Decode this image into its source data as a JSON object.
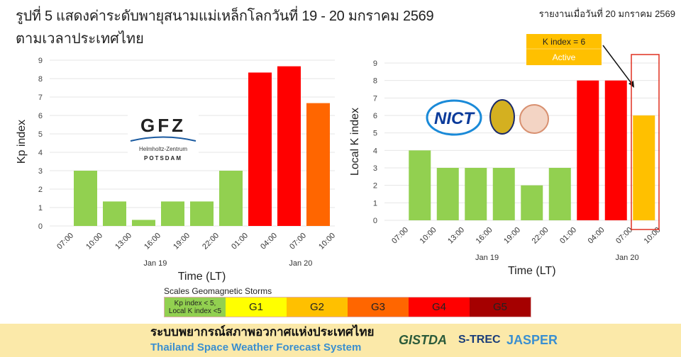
{
  "header": {
    "title_line1": "รูปที่ 5 แสดงค่าระดับพายุสนามแม่เหล็กโลกวันที่ 19 - 20 มกราคม 2569",
    "title_line2": "ตามเวลาประเทศไทย",
    "report_date": "รายงานเมื่อวันที่ 20 มกราคม 2569"
  },
  "chart_data": [
    {
      "type": "bar",
      "ylabel": "Kp index",
      "xlabel": "Time (LT)",
      "ylim": [
        0,
        9
      ],
      "yticks": [
        "0",
        "1",
        "2",
        "3",
        "4",
        "5",
        "6",
        "7",
        "8",
        "9"
      ],
      "xtick_labels": [
        "07:00",
        "10:00",
        "13:00",
        "16:00",
        "19:00",
        "22:00",
        "01:00",
        "04:00",
        "07:00",
        "10:00"
      ],
      "date_labels": [
        "Jan 19",
        "Jan 20"
      ],
      "values": [
        3,
        1.33,
        0.33,
        1.33,
        1.33,
        3,
        8.33,
        8.67,
        6.67
      ],
      "colors": [
        "#92d050",
        "#92d050",
        "#92d050",
        "#92d050",
        "#92d050",
        "#92d050",
        "#ff0000",
        "#ff0000",
        "#ff6600"
      ],
      "logo": {
        "name": "GFZ",
        "line1": "Helmholtz-Zentrum",
        "line2": "POTSDAM"
      }
    },
    {
      "type": "bar",
      "ylabel": "Local K index",
      "xlabel": "Time (LT)",
      "ylim": [
        0,
        9
      ],
      "yticks": [
        "0",
        "1",
        "2",
        "3",
        "4",
        "5",
        "6",
        "7",
        "8",
        "9"
      ],
      "xtick_labels": [
        "07:00",
        "10:00",
        "13:00",
        "16:00",
        "19:00",
        "22:00",
        "01:00",
        "04:00",
        "07:00",
        "10:00"
      ],
      "date_labels": [
        "Jan 19",
        "Jan 20"
      ],
      "values": [
        4,
        3,
        3,
        3,
        2,
        3,
        8,
        8,
        6
      ],
      "colors": [
        "#92d050",
        "#92d050",
        "#92d050",
        "#92d050",
        "#92d050",
        "#92d050",
        "#ff0000",
        "#ff0000",
        "#ffc000"
      ],
      "logo": {
        "name": "NICT"
      },
      "annotation": {
        "line1": "K index = 6",
        "line2": "Active",
        "color": "#ffc000",
        "highlight_color": "#e03020"
      }
    }
  ],
  "scale": {
    "title": "Scales Geomagnetic Storms",
    "items": [
      {
        "label": "Kp index < 5,\nLocal K index <5",
        "color": "#92d050"
      },
      {
        "label": "G1",
        "color": "#ffff00"
      },
      {
        "label": "G2",
        "color": "#ffc000"
      },
      {
        "label": "G3",
        "color": "#ff6600"
      },
      {
        "label": "G4",
        "color": "#ff0000"
      },
      {
        "label": "G5",
        "color": "#a50000"
      }
    ]
  },
  "footer": {
    "title_th": "ระบบพยากรณ์สภาพอวกาศแห่งประเทศไทย",
    "title_en": "Thailand Space Weather Forecast System",
    "logos": [
      "GISTDA",
      "S-TREC",
      "JASPER"
    ]
  }
}
